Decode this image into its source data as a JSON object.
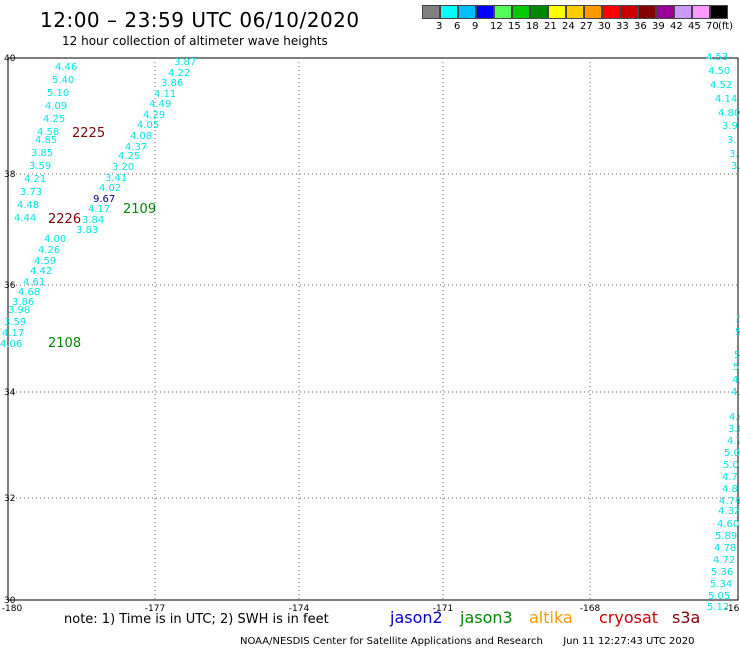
{
  "title": "12:00 – 23:59 UTC 06/10/2020",
  "subtitle": "12 hour collection of altimeter wave heights",
  "color_scale": {
    "colors": [
      "#808080",
      "#00ffff",
      "#00bfff",
      "#0000ff",
      "#55ff55",
      "#00cc00",
      "#008800",
      "#ffff00",
      "#ffcc00",
      "#ff9900",
      "#ff0000",
      "#cc0000",
      "#880000",
      "#990099",
      "#cc99ff",
      "#ff99ff",
      "#000000"
    ],
    "labels": [
      "3",
      "6",
      "9",
      "12",
      "15",
      "18",
      "21",
      "24",
      "27",
      "30",
      "33",
      "36",
      "39",
      "42",
      "45",
      "70"
    ],
    "unit": "(ft)"
  },
  "map": {
    "lon_ticks": [
      "-180",
      "-177",
      "-174",
      "-171",
      "-168",
      "-16"
    ],
    "lat_ticks": [
      "40",
      "38",
      "36",
      "34",
      "32",
      "30"
    ],
    "wave_color": "#00e5e5",
    "track_a": [
      "4.46",
      "5.40",
      "5.10",
      "4.09",
      "4.25",
      "4.58",
      "4.85",
      "3.85",
      "3.59",
      "4.21",
      "3.73",
      "4.48",
      "4.44",
      "4.00",
      "4.26",
      "4.59",
      "4.42",
      "4.61",
      "4.68",
      "3.86",
      "3.98",
      "3.59",
      "4.17",
      "4.06"
    ],
    "track_b": [
      "3.87",
      "4.22",
      "3.86",
      "4.11",
      "4.49",
      "4.29",
      "4.05",
      "4.08",
      "4.37",
      "4.25",
      "3.20",
      "3.41",
      "4.02",
      "4.17",
      "3.84",
      "3.83"
    ],
    "highlight_value": "9.67",
    "highlight_color": "#000080",
    "right_track_top": [
      "4.53",
      "4.50",
      "4.52",
      "4.14",
      "4.80",
      "3.9",
      "3.",
      "3.",
      "3."
    ],
    "right_track_bottom": [
      "5",
      "5",
      "5",
      "5",
      "4.",
      "4.",
      "4.6",
      "3.6",
      "4.7",
      "5.0",
      "5.0",
      "4.7",
      "4.8",
      "4.74",
      "4.32",
      "4.60",
      "5.89",
      "4.78",
      "4.72",
      "5.36",
      "5.34",
      "5.05",
      "5.12"
    ],
    "time_labels": [
      {
        "text": "2225",
        "color": "#800000"
      },
      {
        "text": "2226",
        "color": "#800000"
      },
      {
        "text": "2109",
        "color": "#008800"
      },
      {
        "text": "2108",
        "color": "#008800"
      }
    ]
  },
  "note": "note: 1) Time is in UTC; 2) SWH is in feet",
  "missions": [
    {
      "name": "jason2",
      "color": "#0000cc"
    },
    {
      "name": "jason3",
      "color": "#008800"
    },
    {
      "name": "altika",
      "color": "#ff9900"
    },
    {
      "name": "cryosat",
      "color": "#cc0000"
    },
    {
      "name": "s3a",
      "color": "#800000"
    }
  ],
  "credit": "NOAA/NESDIS Center for Satellite Applications and Research",
  "timestamp": "Jun 11 12:27:43 UTC 2020"
}
